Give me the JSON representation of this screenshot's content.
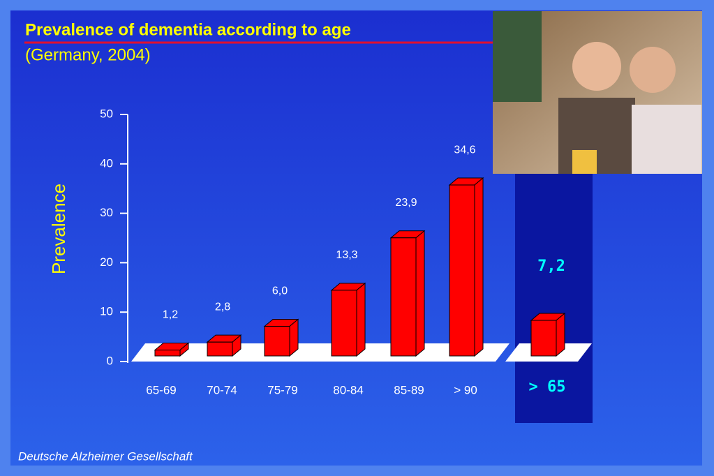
{
  "chart_data": {
    "type": "bar3d",
    "title": "Prevalence of dementia according to age",
    "subtitle": "(Germany, 2004)",
    "y_label": "Prevalence",
    "source": "Deutsche Alzheimer Gesellschaft",
    "categories": [
      "65-69",
      "70-74",
      "75-79",
      "80-84",
      "85-89",
      "> 90"
    ],
    "values": [
      1.2,
      2.8,
      6.0,
      13.3,
      23.9,
      34.6
    ],
    "value_labels": [
      "1,2",
      "2,8",
      "6,0",
      "13,3",
      "23,9",
      "34,6"
    ],
    "color": "#ff0000",
    "ylim": [
      0,
      50
    ],
    "yticks": [
      0,
      10,
      20,
      30,
      40,
      50
    ],
    "total": {
      "category": "> 65",
      "value": 7.2,
      "value_label": "7,2"
    }
  }
}
